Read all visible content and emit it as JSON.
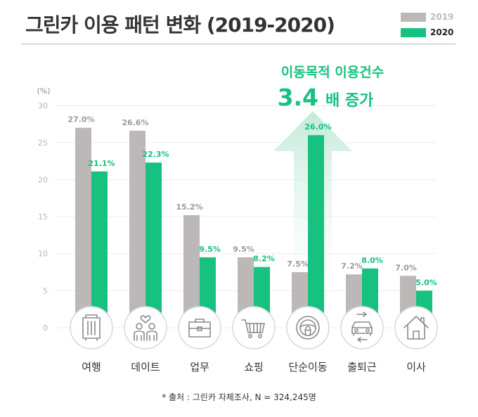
{
  "header": {
    "title": "그린카 이용 패턴 변화 (2019-2020)"
  },
  "legend": [
    {
      "label": "2019",
      "color": "#bdb8b8",
      "text_color": "#bdb8b8"
    },
    {
      "label": "2020",
      "color": "#17c17f",
      "text_color": "#222222"
    }
  ],
  "annotation": {
    "line1": "이동목적 이용건수",
    "line2_number": "3.4",
    "line2_rest": "배 증가",
    "color": "#17c17f"
  },
  "source": "* 출처 : 그린카 자체조사, N = 324,245명",
  "chart_data": {
    "type": "bar",
    "title": "그린카 이용 패턴 변화 (2019-2020)",
    "ylabel": "(%)",
    "ylim": [
      0,
      30
    ],
    "yticks": [
      0,
      5,
      10,
      15,
      20,
      25,
      30
    ],
    "grid": true,
    "legend_position": "top-right",
    "categories": [
      "여행",
      "데이트",
      "업무",
      "쇼핑",
      "단순이동",
      "출퇴근",
      "이사"
    ],
    "icons": [
      "suitcase-icon",
      "couple-icon",
      "briefcase-icon",
      "shopping-cart-icon",
      "steering-wheel-icon",
      "car-commute-icon",
      "house-icon"
    ],
    "series": [
      {
        "name": "2019",
        "color": "#bdb8b8",
        "label_color": "#999999",
        "values": [
          27.0,
          26.6,
          15.2,
          9.5,
          7.5,
          7.2,
          7.0
        ],
        "labels": [
          "27.0%",
          "26.6%",
          "15.2%",
          "9.5%",
          "7.5%",
          "7.2%",
          "7.0%"
        ]
      },
      {
        "name": "2020",
        "color": "#17c17f",
        "label_color": "#17c17f",
        "values": [
          21.1,
          22.3,
          9.5,
          8.2,
          26.0,
          8.0,
          5.0
        ],
        "labels": [
          "21.1%",
          "22.3%",
          "9.5%",
          "8.2%",
          "26.0%",
          "8.0%",
          "5.0%"
        ]
      }
    ]
  }
}
